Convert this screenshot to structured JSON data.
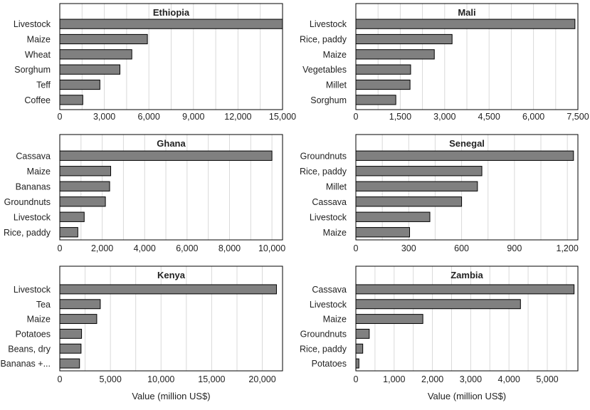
{
  "figure": {
    "xlabel": "Value (million US$)",
    "bar_color": "#808080",
    "bar_stroke": "#000000",
    "grid_color": "#d9d9d9"
  },
  "chart_data": [
    {
      "type": "bar",
      "orientation": "horizontal",
      "title": "Ethiopia",
      "categories": [
        "Livestock",
        "Maize",
        "Wheat",
        "Sorghum",
        "Teff",
        "Coffee"
      ],
      "values": [
        15000,
        5900,
        4850,
        4050,
        2700,
        1550
      ],
      "xlim": [
        0,
        15000
      ],
      "xticks": [
        0,
        3000,
        6000,
        9000,
        12000,
        15000
      ],
      "tick_labels": [
        "0",
        "3,000",
        "6,000",
        "9,000",
        "12,000",
        "15,000"
      ],
      "xlabel": ""
    },
    {
      "type": "bar",
      "orientation": "horizontal",
      "title": "Mali",
      "categories": [
        "Livestock",
        "Rice, paddy",
        "Maize",
        "Vegetables",
        "Millet",
        "Sorghum"
      ],
      "values": [
        7400,
        3250,
        2650,
        1850,
        1830,
        1350
      ],
      "xlim": [
        0,
        7500
      ],
      "xticks": [
        0,
        1500,
        3000,
        4500,
        6000,
        7500
      ],
      "tick_labels": [
        "0",
        "1,500",
        "3,000",
        "4,500",
        "6,000",
        "7,500"
      ],
      "xlabel": ""
    },
    {
      "type": "bar",
      "orientation": "horizontal",
      "title": "Ghana",
      "categories": [
        "Cassava",
        "Maize",
        "Bananas",
        "Groundnuts",
        "Livestock",
        "Rice, paddy"
      ],
      "values": [
        10000,
        2400,
        2350,
        2150,
        1150,
        850
      ],
      "xlim": [
        0,
        10500
      ],
      "xticks": [
        0,
        2000,
        4000,
        6000,
        8000,
        10000
      ],
      "tick_labels": [
        "0",
        "2,000",
        "4,000",
        "6,000",
        "8,000",
        "10,000"
      ],
      "xlabel": ""
    },
    {
      "type": "bar",
      "orientation": "horizontal",
      "title": "Senegal",
      "categories": [
        "Groundnuts",
        "Rice, paddy",
        "Millet",
        "Cassava",
        "Livestock",
        "Maize"
      ],
      "values": [
        1235,
        715,
        690,
        600,
        420,
        305
      ],
      "xlim": [
        0,
        1260
      ],
      "xticks": [
        0,
        300,
        600,
        900,
        1200
      ],
      "tick_labels": [
        "0",
        "300",
        "600",
        "900",
        "1,200"
      ],
      "xlabel": ""
    },
    {
      "type": "bar",
      "orientation": "horizontal",
      "title": "Kenya",
      "categories": [
        "Livestock",
        "Tea",
        "Maize",
        "Potatoes",
        "Beans, dry",
        "Bananas +..."
      ],
      "values": [
        21400,
        4000,
        3650,
        2150,
        2100,
        1950
      ],
      "xlim": [
        0,
        22000
      ],
      "xticks": [
        0,
        5000,
        10000,
        15000,
        20000
      ],
      "tick_labels": [
        "0",
        "5,000",
        "10,000",
        "15,000",
        "20,000"
      ],
      "xlabel": "Value (million US$)"
    },
    {
      "type": "bar",
      "orientation": "horizontal",
      "title": "Zambia",
      "categories": [
        "Cassava",
        "Livestock",
        "Maize",
        "Groundnuts",
        "Rice, paddy",
        "Potatoes"
      ],
      "values": [
        5700,
        4300,
        1750,
        350,
        180,
        80
      ],
      "xlim": [
        0,
        5800
      ],
      "xticks": [
        0,
        1000,
        2000,
        3000,
        4000,
        5000
      ],
      "tick_labels": [
        "0",
        "1,000",
        "2,000",
        "3,000",
        "4,000",
        "5,000"
      ],
      "xlabel": "Value (million US$)"
    }
  ]
}
